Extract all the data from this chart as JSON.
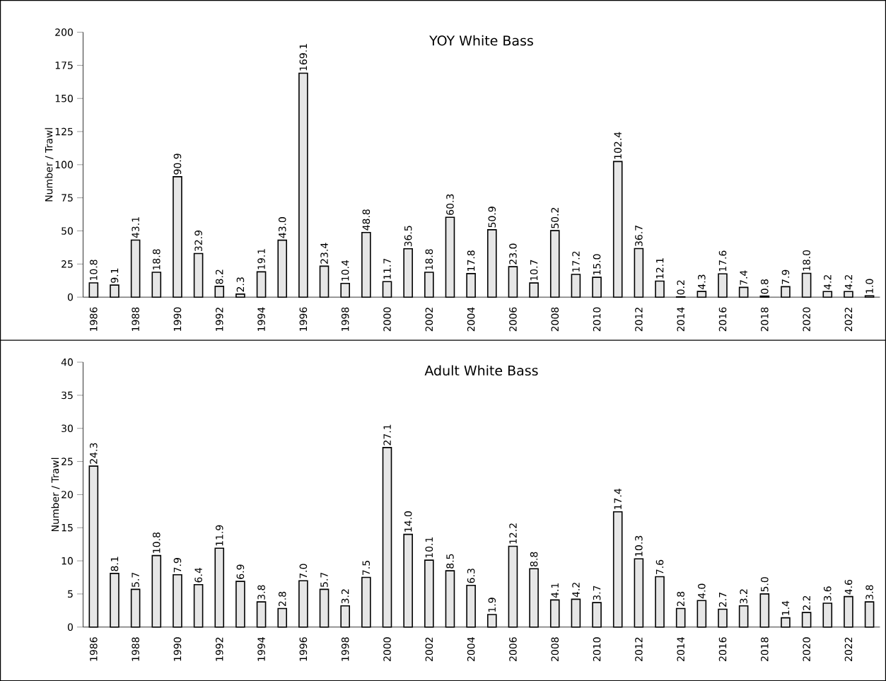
{
  "chart_data": [
    {
      "type": "bar",
      "title": "YOY White Bass",
      "ylabel": "Number / Trawl",
      "categories": [
        "1986",
        null,
        "1988",
        null,
        "1990",
        null,
        "1992",
        null,
        "1994",
        null,
        "1996",
        null,
        "1998",
        null,
        "2000",
        null,
        "2002",
        null,
        "2004",
        null,
        "2006",
        null,
        "2008",
        null,
        "2010",
        null,
        "2012",
        null,
        "2014",
        null,
        "2016",
        null,
        "2018",
        null,
        "2020",
        null,
        "2022",
        null
      ],
      "values": [
        10.8,
        9.1,
        43.1,
        18.8,
        90.9,
        32.9,
        8.2,
        2.3,
        19.1,
        43.0,
        169.1,
        23.4,
        10.4,
        48.8,
        11.7,
        36.5,
        18.8,
        60.3,
        17.8,
        50.9,
        23.0,
        10.7,
        50.2,
        17.2,
        15.0,
        102.4,
        36.7,
        12.1,
        0.2,
        4.3,
        17.6,
        7.4,
        0.8,
        7.9,
        18.0,
        4.2,
        4.2,
        1.0
      ],
      "value_labels": [
        "10.8",
        "9.1",
        "43.1",
        "18.8",
        "90.9",
        "32.9",
        "8.2",
        "2.3",
        "19.1",
        "43.0",
        "169.1",
        "23.4",
        "10.4",
        "48.8",
        "11.7",
        "36.5",
        "18.8",
        "60.3",
        "17.8",
        "50.9",
        "23.0",
        "10.7",
        "50.2",
        "17.2",
        "15.0",
        "102.4",
        "36.7",
        "12.1",
        "0.2",
        "4.3",
        "17.6",
        "7.4",
        "0.8",
        "7.9",
        "18.0",
        "4.2",
        "4.2",
        "1.0"
      ],
      "color": "#e6e6e6",
      "ylim": [
        0,
        200
      ],
      "yticks": [
        0,
        25,
        50,
        75,
        100,
        125,
        150,
        175,
        200
      ]
    },
    {
      "type": "bar",
      "title": "Adult White Bass",
      "ylabel": "Number / Trawl",
      "categories": [
        "1986",
        null,
        "1988",
        null,
        "1990",
        null,
        "1992",
        null,
        "1994",
        null,
        "1996",
        null,
        "1998",
        null,
        "2000",
        null,
        "2002",
        null,
        "2004",
        null,
        "2006",
        null,
        "2008",
        null,
        "2010",
        null,
        "2012",
        null,
        "2014",
        null,
        "2016",
        null,
        "2018",
        null,
        "2020",
        null,
        "2022",
        null
      ],
      "values": [
        24.3,
        8.1,
        5.7,
        10.8,
        7.9,
        6.4,
        11.9,
        6.9,
        3.8,
        2.8,
        7.0,
        5.7,
        3.2,
        7.5,
        27.1,
        14.0,
        10.1,
        8.5,
        6.3,
        1.9,
        12.2,
        8.8,
        4.1,
        4.2,
        3.7,
        17.4,
        10.3,
        7.6,
        2.8,
        4.0,
        2.7,
        3.2,
        5.0,
        1.4,
        2.2,
        3.6,
        4.6,
        3.8
      ],
      "value_labels": [
        "24.3",
        "8.1",
        "5.7",
        "10.8",
        "7.9",
        "6.4",
        "11.9",
        "6.9",
        "3.8",
        "2.8",
        "7.0",
        "5.7",
        "3.2",
        "7.5",
        "27.1",
        "14.0",
        "10.1",
        "8.5",
        "6.3",
        "1.9",
        "12.2",
        "8.8",
        "4.1",
        "4.2",
        "3.7",
        "17.4",
        "10.3",
        "7.6",
        "2.8",
        "4.0",
        "2.7",
        "3.2",
        "5.0",
        "1.4",
        "2.2",
        "3.6",
        "4.6",
        "3.8"
      ],
      "color": "#e6e6e6",
      "ylim": [
        0,
        40
      ],
      "yticks": [
        0,
        5,
        10,
        15,
        20,
        25,
        30,
        35,
        40
      ]
    }
  ]
}
